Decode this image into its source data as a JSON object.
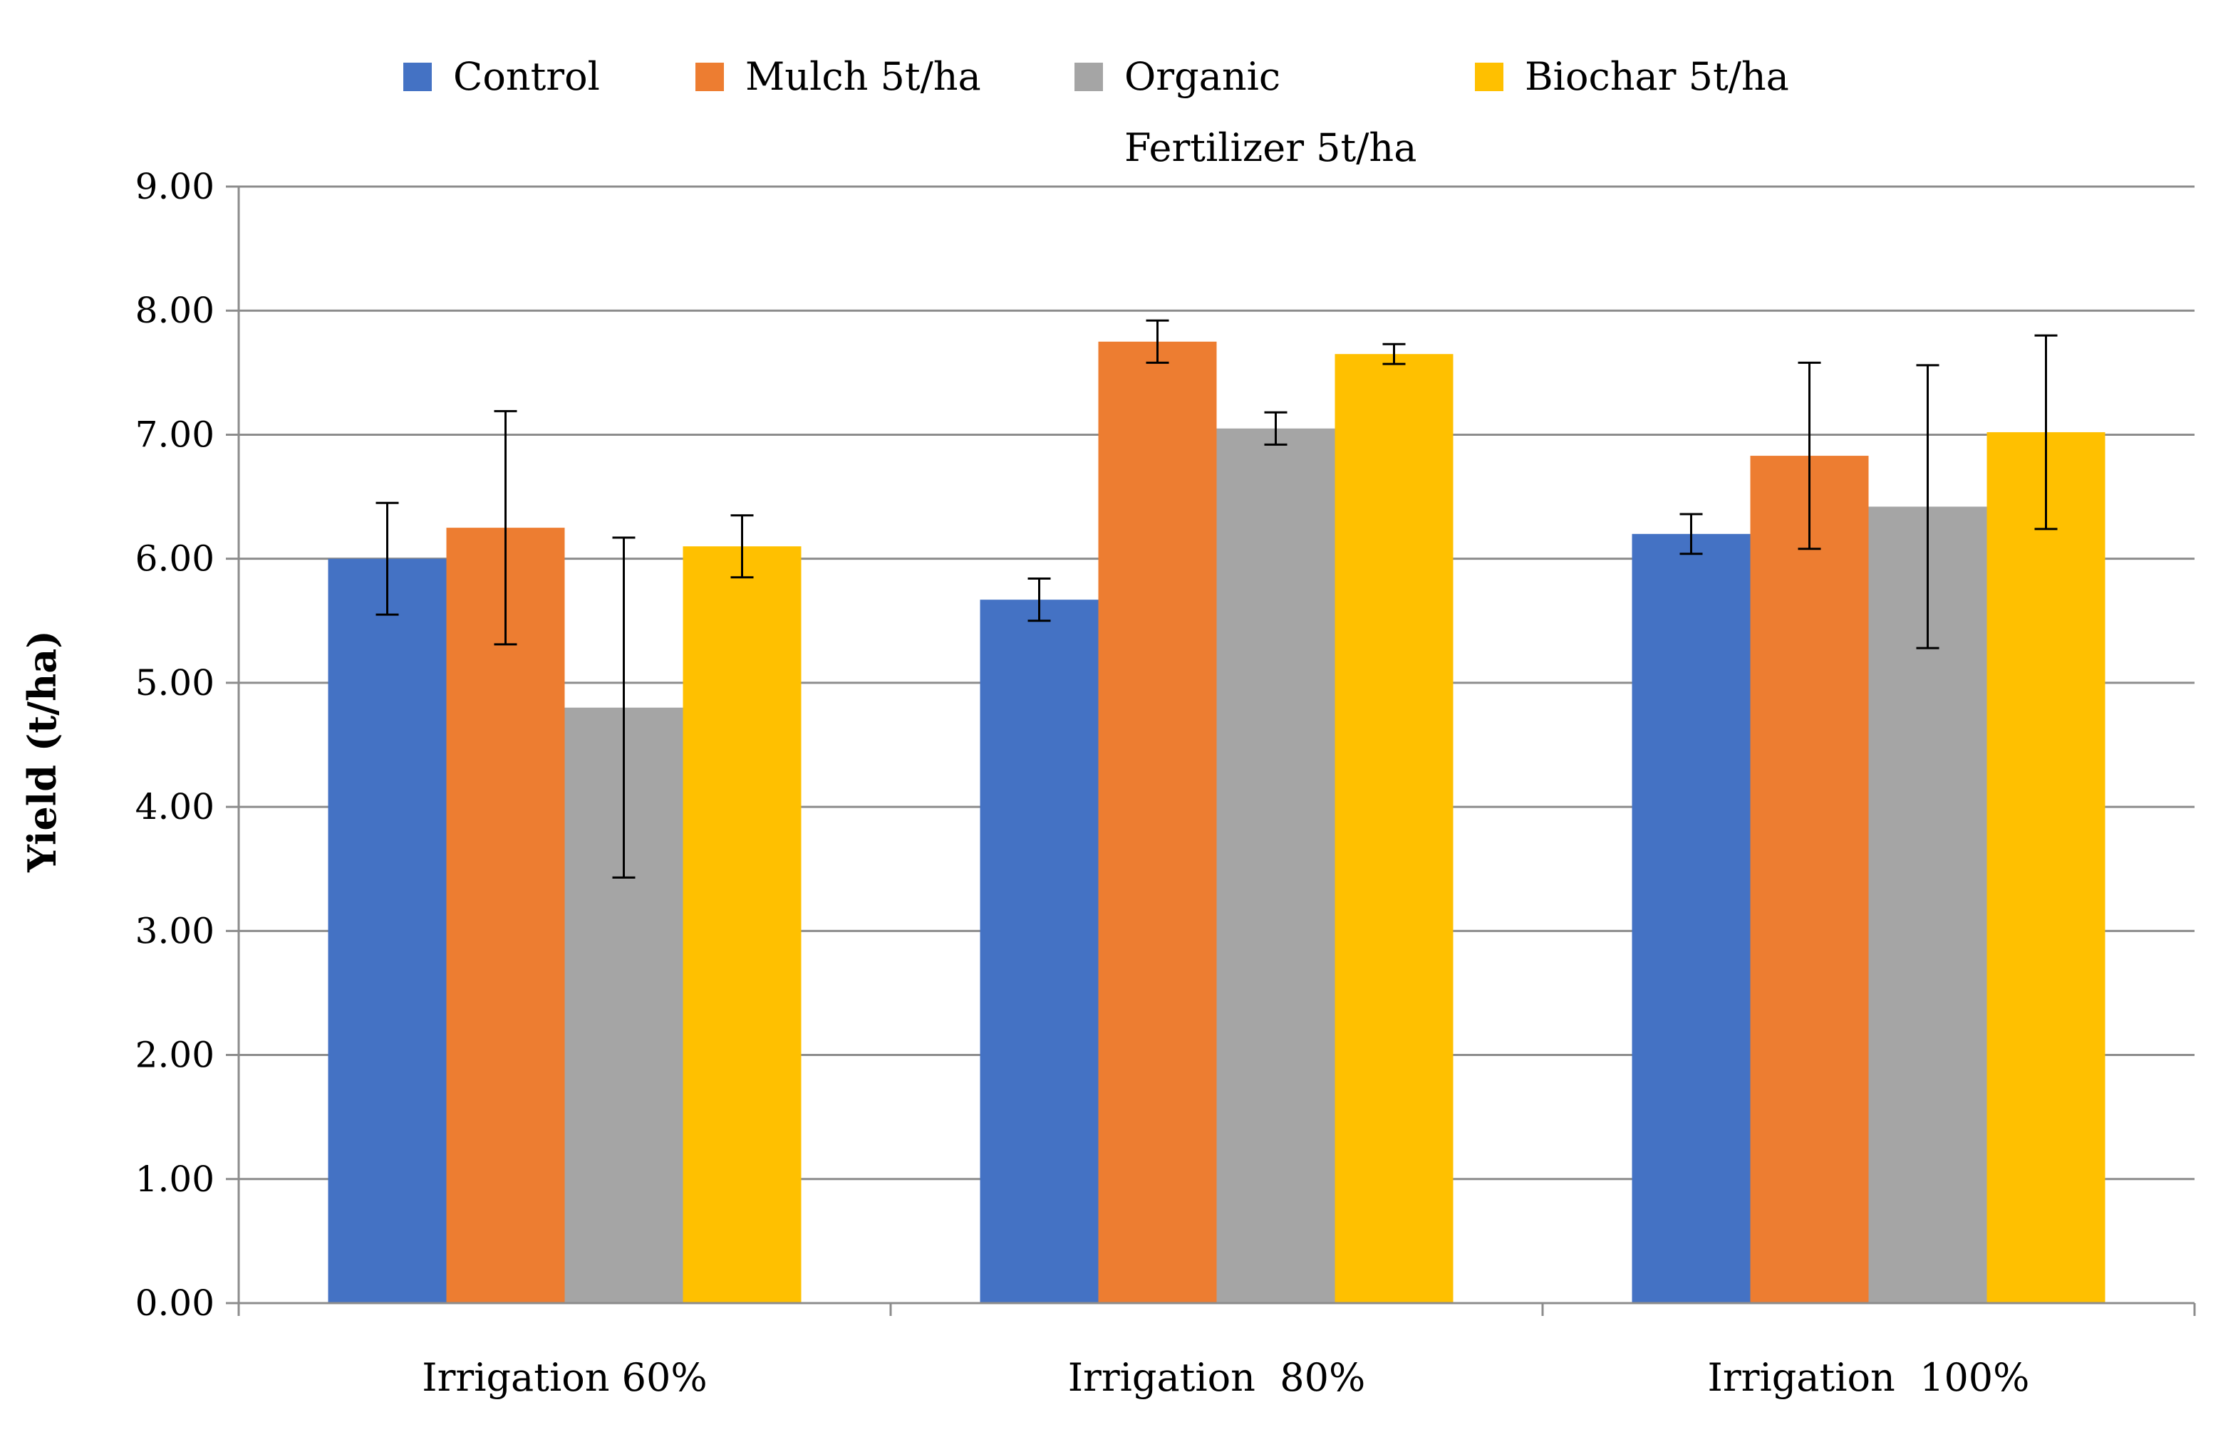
{
  "chart_data": {
    "type": "bar",
    "title": "",
    "xlabel": "",
    "ylabel": "Yield (t/ha)",
    "ylim": [
      0,
      9
    ],
    "yticks": [
      "0.00",
      "1.00",
      "2.00",
      "3.00",
      "4.00",
      "5.00",
      "6.00",
      "7.00",
      "8.00",
      "9.00"
    ],
    "categories": [
      "Irrigation 60%",
      "Irrigation  80%",
      "Irrigation  100%"
    ],
    "grid": true,
    "legend_position": "top",
    "series": [
      {
        "name": "Control",
        "legend_lines": [
          "Control"
        ],
        "color": "#4472C4",
        "values": [
          6.0,
          5.67,
          6.2
        ],
        "errors": [
          0.45,
          0.17,
          0.16
        ]
      },
      {
        "name": "Mulch 5t/ha",
        "legend_lines": [
          "Mulch 5t/ha"
        ],
        "color": "#ED7D31",
        "values": [
          6.25,
          7.75,
          6.83
        ],
        "errors": [
          0.94,
          0.17,
          0.75
        ]
      },
      {
        "name": "Organic Fertilizer 5t/ha",
        "legend_lines": [
          "Organic",
          "Fertilizer 5t/ha"
        ],
        "color": "#A5A5A5",
        "values": [
          4.8,
          7.05,
          6.42
        ],
        "errors": [
          1.37,
          0.13,
          1.14
        ]
      },
      {
        "name": "Biochar 5t/ha",
        "legend_lines": [
          "Biochar 5t/ha"
        ],
        "color": "#FFC000",
        "values": [
          6.1,
          7.65,
          7.02
        ],
        "errors": [
          0.25,
          0.08,
          0.78
        ]
      }
    ]
  }
}
